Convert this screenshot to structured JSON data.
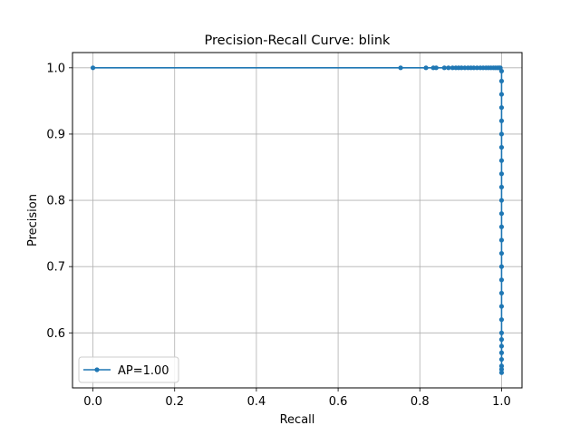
{
  "chart_data": {
    "type": "line",
    "title": "Precision-Recall Curve: blink",
    "xlabel": "Recall",
    "ylabel": "Precision",
    "xlim": [
      -0.05,
      1.05
    ],
    "ylim": [
      0.517,
      1.023
    ],
    "grid": true,
    "legend_position": "lower-left",
    "color": "#1f77b4",
    "x_ticks": [
      0.0,
      0.2,
      0.4,
      0.6,
      0.8,
      1.0
    ],
    "x_tick_labels": [
      "0.0",
      "0.2",
      "0.4",
      "0.6",
      "0.8",
      "1.0"
    ],
    "y_ticks": [
      0.6,
      0.7,
      0.8,
      0.9,
      1.0
    ],
    "y_tick_labels": [
      "0.6",
      "0.7",
      "0.8",
      "0.9",
      "1.0"
    ],
    "series": [
      {
        "name": "AP=1.00",
        "marker": "circle",
        "x": [
          0.0,
          0.753,
          0.815,
          0.833,
          0.84,
          0.86,
          0.87,
          0.88,
          0.888,
          0.895,
          0.902,
          0.91,
          0.918,
          0.925,
          0.932,
          0.94,
          0.948,
          0.955,
          0.962,
          0.968,
          0.974,
          0.98,
          0.985,
          0.99,
          0.994,
          0.997,
          1.0,
          1.0,
          1.0,
          1.0,
          1.0,
          1.0,
          1.0,
          1.0,
          1.0,
          1.0,
          1.0,
          1.0,
          1.0,
          1.0,
          1.0,
          1.0,
          1.0,
          1.0,
          1.0,
          1.0,
          1.0,
          1.0,
          1.0,
          1.0,
          1.0,
          1.0,
          1.0,
          1.0
        ],
        "y": [
          1.0,
          1.0,
          1.0,
          1.0,
          1.0,
          1.0,
          1.0,
          1.0,
          1.0,
          1.0,
          1.0,
          1.0,
          1.0,
          1.0,
          1.0,
          1.0,
          1.0,
          1.0,
          1.0,
          1.0,
          1.0,
          1.0,
          1.0,
          1.0,
          1.0,
          1.0,
          0.995,
          0.98,
          0.96,
          0.94,
          0.92,
          0.9,
          0.88,
          0.86,
          0.84,
          0.82,
          0.8,
          0.78,
          0.76,
          0.74,
          0.72,
          0.7,
          0.68,
          0.66,
          0.64,
          0.62,
          0.6,
          0.59,
          0.58,
          0.57,
          0.56,
          0.55,
          0.545,
          0.54
        ]
      }
    ]
  }
}
